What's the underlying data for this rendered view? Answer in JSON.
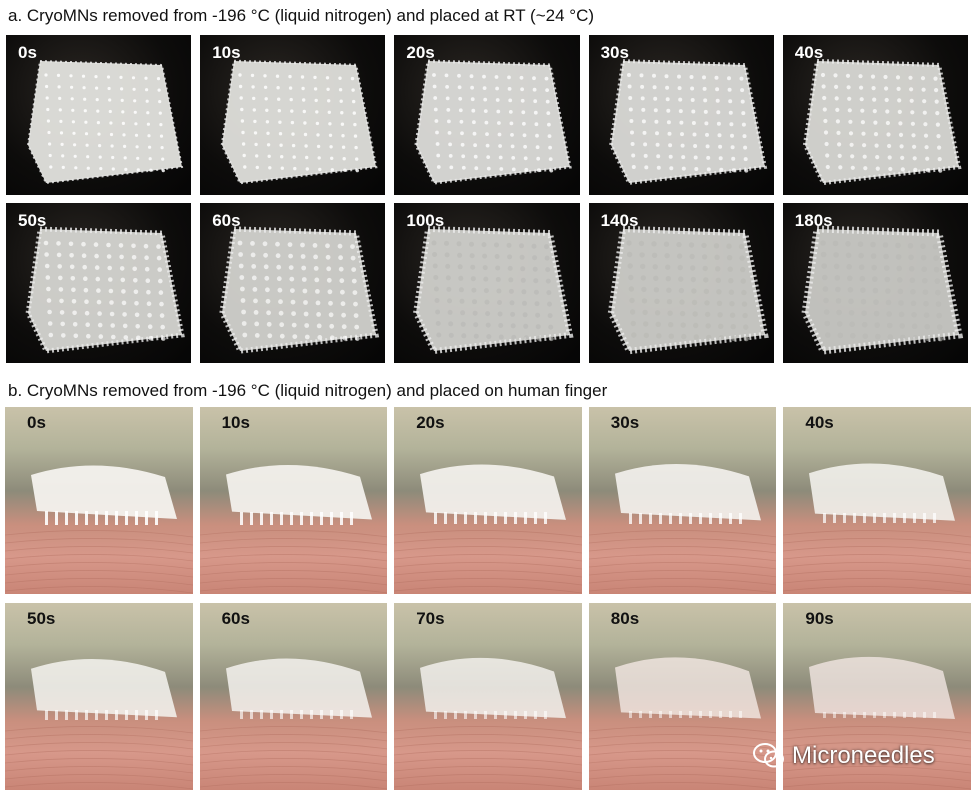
{
  "section_a": {
    "title": "a. CryoMNs removed from -196 °C (liquid nitrogen) and placed at RT (~24 °C)",
    "times": [
      "0s",
      "10s",
      "20s",
      "30s",
      "40s",
      "50s",
      "60s",
      "100s",
      "140s",
      "180s"
    ]
  },
  "section_b": {
    "title": "b. CryoMNs removed from -196 °C (liquid nitrogen) and placed on human finger",
    "times": [
      "0s",
      "10s",
      "20s",
      "30s",
      "40s",
      "50s",
      "60s",
      "70s",
      "80s",
      "90s"
    ]
  },
  "watermark": {
    "text": "Microneedles",
    "icon": "wechat-icon"
  }
}
